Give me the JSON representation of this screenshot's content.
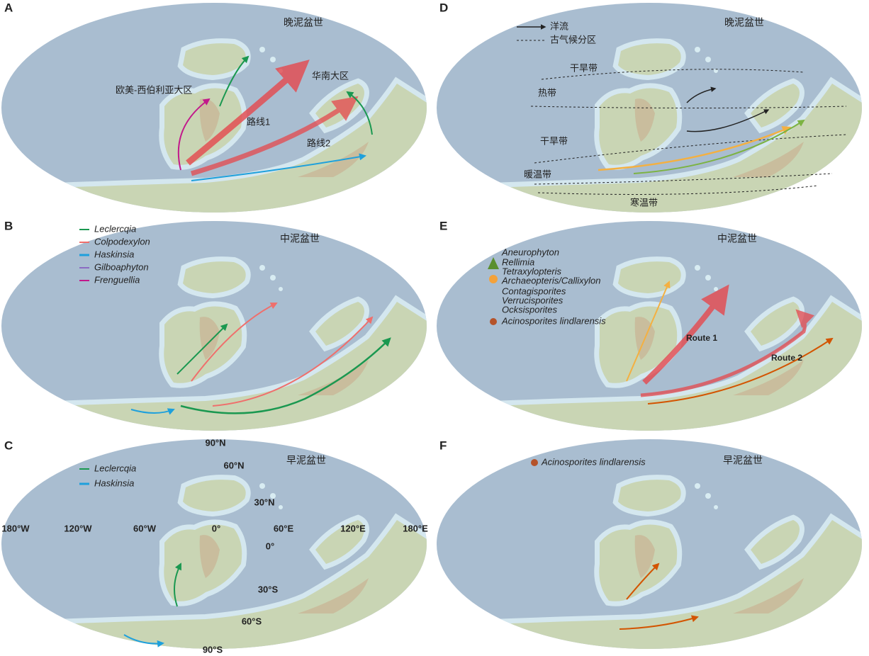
{
  "panels": [
    {
      "label": "A",
      "period": "晚泥盆世",
      "labels": [
        "欧美-西伯利亚大区",
        "华南大区",
        "路线1",
        "路线2"
      ]
    },
    {
      "label": "B",
      "period": "中泥盆世",
      "legend": [
        "Leclercqia",
        "Colpodexylon",
        "Haskinsia",
        "Gilboaphyton",
        "Frenguellia"
      ]
    },
    {
      "label": "C",
      "period": "早泥盆世",
      "legend": [
        "Leclercqia",
        "Haskinsia"
      ],
      "latitudes": [
        "90°N",
        "60°N",
        "30°N",
        "0°",
        "30°S",
        "60°S",
        "90°S"
      ],
      "longitudes": [
        "180°W",
        "120°W",
        "60°W",
        "0°",
        "60°E",
        "120°E",
        "180°E"
      ]
    },
    {
      "label": "D",
      "period": "晚泥盆世",
      "legend": [
        "洋流",
        "古气候分区"
      ],
      "zones": [
        "干旱带",
        "热带",
        "干旱带",
        "暖温带",
        "寒温带"
      ]
    },
    {
      "label": "E",
      "period": "中泥盆世",
      "legend": [
        [
          "Aneurophyton",
          "Rellimia",
          "Tetraxylopteris",
          "Archaeopteris/Callixylon"
        ],
        [
          "Contagisporites",
          "Verrucisporites",
          "Ocksisporites"
        ],
        [
          "Acinosporites lindlarensis"
        ]
      ],
      "labels": [
        "Route 1",
        "Route 2"
      ]
    },
    {
      "label": "F",
      "period": "早泥盆世",
      "legend": [
        "Acinosporites lindlarensis"
      ]
    }
  ]
}
